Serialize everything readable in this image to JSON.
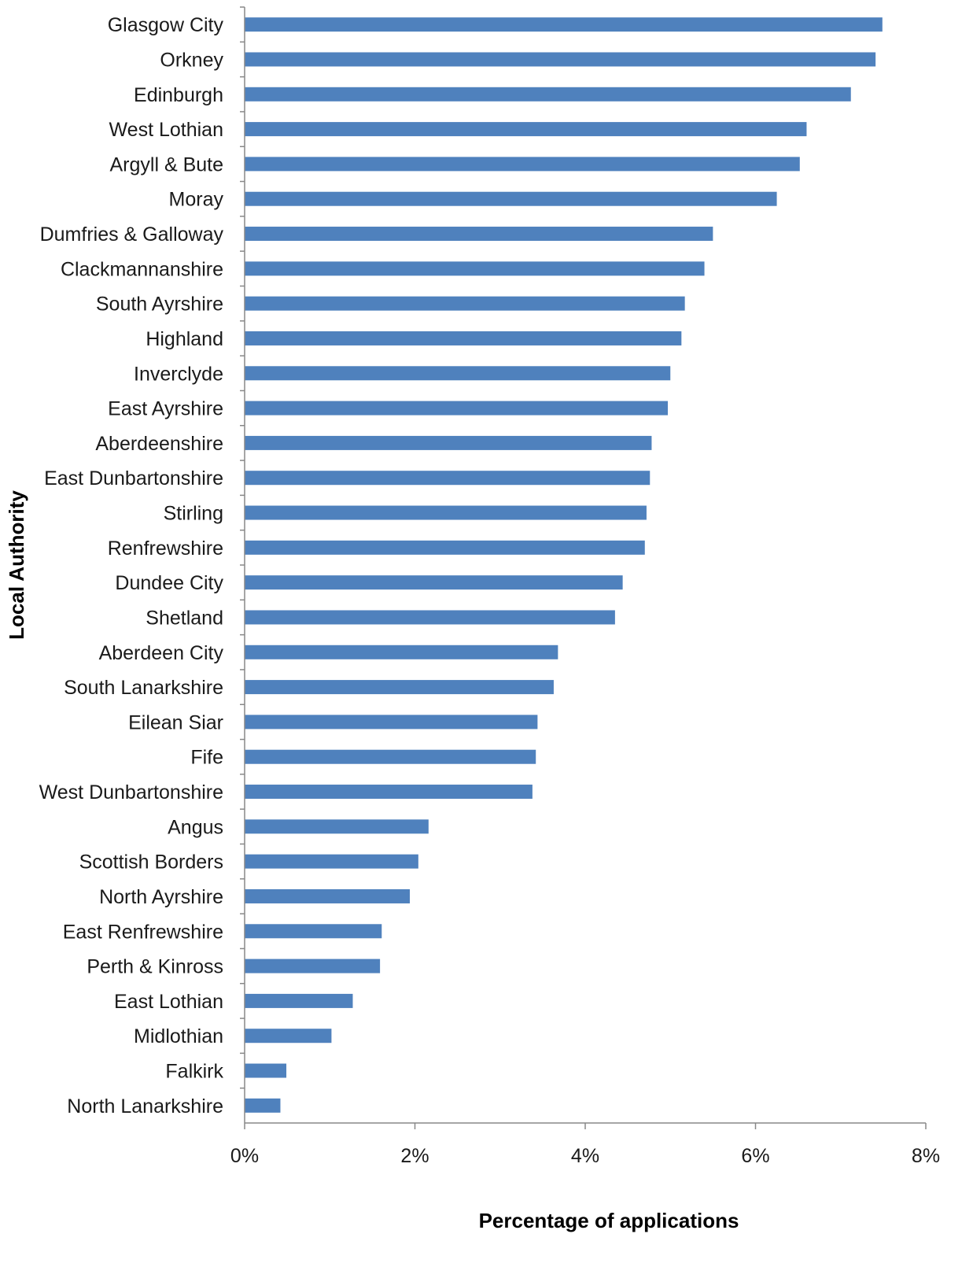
{
  "chart_data": {
    "type": "bar",
    "orientation": "horizontal",
    "xlabel": "Percentage of applications",
    "ylabel": "Local Authority",
    "xlim": [
      0,
      8
    ],
    "xticks": [
      0,
      2,
      4,
      6,
      8
    ],
    "xtick_labels": [
      "0%",
      "2%",
      "4%",
      "6%",
      "8%"
    ],
    "grid": false,
    "legend": "none",
    "bar_color": "#4F81BD",
    "categories": [
      "Glasgow City",
      "Orkney",
      "Edinburgh",
      "West Lothian",
      "Argyll & Bute",
      "Moray",
      "Dumfries & Galloway",
      "Clackmannanshire",
      "South Ayrshire",
      "Highland",
      "Inverclyde",
      "East Ayrshire",
      "Aberdeenshire",
      "East Dunbartonshire",
      "Stirling",
      "Renfrewshire",
      "Dundee City",
      "Shetland",
      "Aberdeen City",
      "South Lanarkshire",
      "Eilean Siar",
      "Fife",
      "West Dunbartonshire",
      "Angus",
      "Scottish Borders",
      "North Ayrshire",
      "East Renfrewshire",
      "Perth & Kinross",
      "East Lothian",
      "Midlothian",
      "Falkirk",
      "North Lanarkshire"
    ],
    "values": [
      7.49,
      7.41,
      7.12,
      6.6,
      6.52,
      6.25,
      5.5,
      5.4,
      5.17,
      5.13,
      5.0,
      4.97,
      4.78,
      4.76,
      4.72,
      4.7,
      4.44,
      4.35,
      3.68,
      3.63,
      3.44,
      3.42,
      3.38,
      2.16,
      2.04,
      1.94,
      1.61,
      1.59,
      1.27,
      1.02,
      0.49,
      0.42
    ]
  }
}
